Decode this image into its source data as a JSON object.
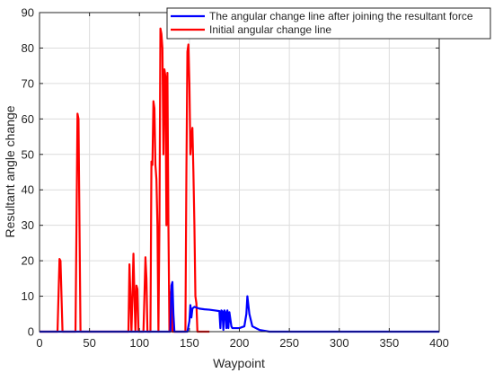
{
  "chart_data": {
    "type": "line",
    "title": "",
    "xlabel": "Waypoint",
    "ylabel": "Resultant angle change",
    "xlim": [
      0,
      400
    ],
    "ylim": [
      0,
      90
    ],
    "xticks": [
      0,
      50,
      100,
      150,
      200,
      250,
      300,
      350,
      400
    ],
    "yticks": [
      0,
      10,
      20,
      30,
      40,
      50,
      60,
      70,
      80,
      90
    ],
    "grid": true,
    "legend_position": "top-right",
    "series": [
      {
        "name": "The angular change line after joining the resultant force",
        "color": "#0000ff",
        "points": [
          [
            0,
            0
          ],
          [
            131,
            0
          ],
          [
            132,
            13
          ],
          [
            133,
            14
          ],
          [
            134,
            5
          ],
          [
            135,
            0
          ],
          [
            148,
            0
          ],
          [
            150,
            3
          ],
          [
            151,
            7.5
          ],
          [
            152,
            4
          ],
          [
            153,
            6.5
          ],
          [
            155,
            7
          ],
          [
            160,
            6.5
          ],
          [
            165,
            6.3
          ],
          [
            170,
            6.2
          ],
          [
            175,
            6
          ],
          [
            180,
            5.8
          ],
          [
            181,
            1
          ],
          [
            182,
            6
          ],
          [
            183,
            5.7
          ],
          [
            184,
            0.5
          ],
          [
            185,
            6
          ],
          [
            186,
            5.5
          ],
          [
            187,
            1
          ],
          [
            188,
            6
          ],
          [
            189,
            1
          ],
          [
            190,
            5.5
          ],
          [
            192,
            1.5
          ],
          [
            193,
            1
          ],
          [
            200,
            1
          ],
          [
            205,
            1.5
          ],
          [
            207,
            5
          ],
          [
            208,
            10
          ],
          [
            210,
            5
          ],
          [
            213,
            1.5
          ],
          [
            220,
            0.5
          ],
          [
            230,
            0
          ],
          [
            400,
            0
          ]
        ]
      },
      {
        "name": "Initial angular change line",
        "color": "#ff0000",
        "points": [
          [
            0,
            0
          ],
          [
            18,
            0
          ],
          [
            20,
            20.5
          ],
          [
            21,
            20
          ],
          [
            23,
            0
          ],
          [
            36,
            0
          ],
          [
            37,
            30
          ],
          [
            38,
            61.5
          ],
          [
            39,
            60
          ],
          [
            40,
            30
          ],
          [
            41,
            0
          ],
          [
            89,
            0
          ],
          [
            90,
            19
          ],
          [
            91,
            10
          ],
          [
            92,
            0
          ],
          [
            93,
            10
          ],
          [
            94,
            22
          ],
          [
            95,
            10
          ],
          [
            96,
            0
          ],
          [
            97,
            13
          ],
          [
            98,
            12
          ],
          [
            99,
            0
          ],
          [
            104,
            0
          ],
          [
            105,
            10
          ],
          [
            106,
            21
          ],
          [
            107,
            15
          ],
          [
            108,
            0
          ],
          [
            111,
            0
          ],
          [
            112,
            48
          ],
          [
            113,
            47
          ],
          [
            114,
            65
          ],
          [
            115,
            63
          ],
          [
            116,
            47
          ],
          [
            117,
            43
          ],
          [
            118,
            30
          ],
          [
            119,
            0
          ],
          [
            120,
            30
          ],
          [
            121,
            85.5
          ],
          [
            122,
            84
          ],
          [
            123,
            80
          ],
          [
            124,
            50
          ],
          [
            125,
            74
          ],
          [
            126,
            72
          ],
          [
            127,
            30
          ],
          [
            128,
            73
          ],
          [
            129,
            30
          ],
          [
            130,
            0
          ],
          [
            131,
            10
          ],
          [
            132,
            12
          ],
          [
            133,
            0
          ],
          [
            146,
            0
          ],
          [
            147,
            45
          ],
          [
            148,
            79
          ],
          [
            149,
            81
          ],
          [
            150,
            70
          ],
          [
            151,
            50
          ],
          [
            152,
            55
          ],
          [
            153,
            57.5
          ],
          [
            154,
            45
          ],
          [
            155,
            30
          ],
          [
            156,
            10
          ],
          [
            157,
            8
          ],
          [
            158,
            0
          ],
          [
            165,
            0
          ],
          [
            170,
            0
          ]
        ]
      }
    ]
  }
}
